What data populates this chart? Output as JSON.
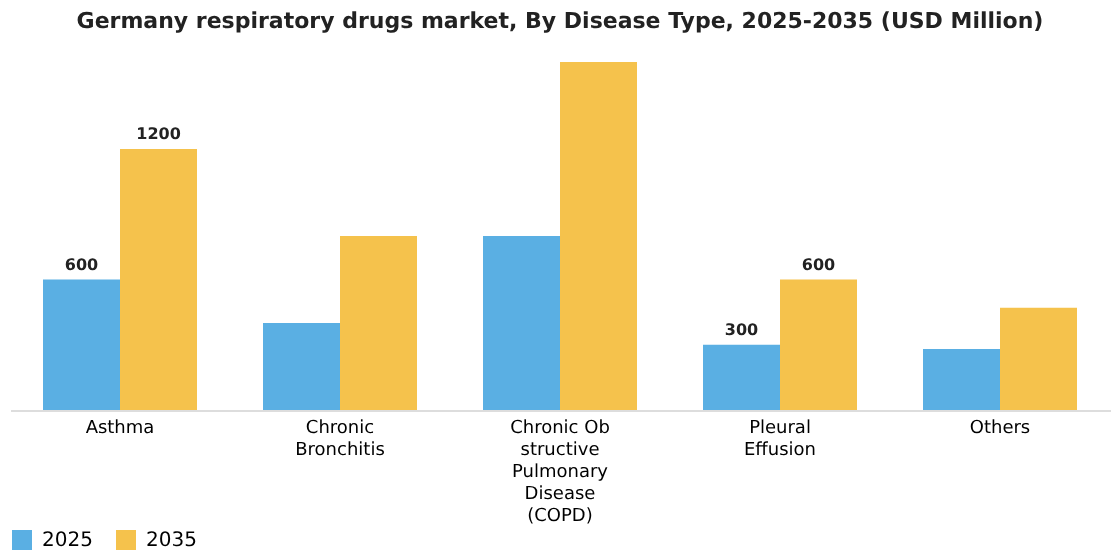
{
  "chart_data": {
    "type": "bar",
    "title": "Germany respiratory drugs market, By Disease Type, 2025-2035 (USD Million)",
    "categories": [
      "Asthma",
      "Chronic\nBronchitis",
      "Chronic Ob\nstructive\nPulmonary\nDisease\n(COPD)",
      "Pleural\nEffusion",
      "Others"
    ],
    "series": [
      {
        "name": "2025",
        "color": "#5aafe3",
        "values": [
          600,
          400,
          800,
          300,
          280
        ],
        "value_labels": [
          "600",
          null,
          null,
          "300",
          null
        ]
      },
      {
        "name": "2035",
        "color": "#f5c24c",
        "values": [
          1200,
          800,
          1600,
          600,
          470
        ],
        "value_labels": [
          "1200",
          null,
          null,
          "600",
          null
        ]
      }
    ],
    "legend": "bottom",
    "grid": false
  }
}
